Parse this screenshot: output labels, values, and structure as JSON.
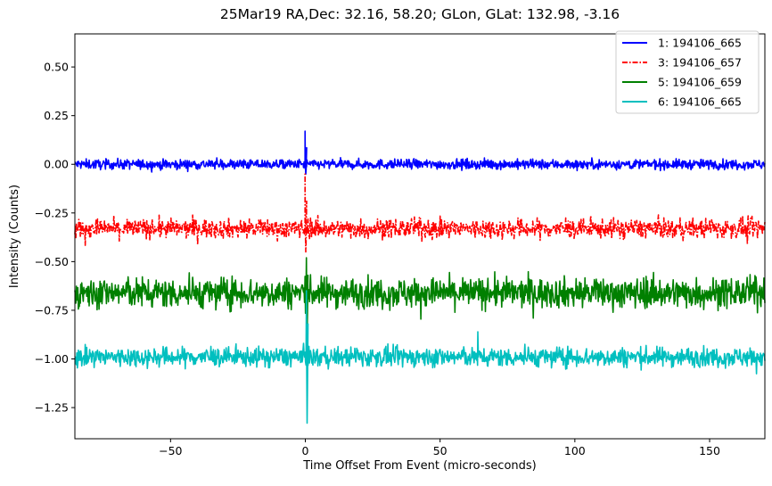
{
  "chart_data": {
    "type": "line",
    "title": "25Mar19 RA,Dec:   32.16,  58.20; GLon, GLat:  132.98,  -3.16",
    "xlabel": "Time Offset From Event (micro-seconds)",
    "ylabel": "Intensity (Counts)",
    "xlim": [
      -85.5,
      170.5
    ],
    "ylim": [
      -1.41,
      0.67
    ],
    "xticks": [
      -50,
      0,
      50,
      100,
      150
    ],
    "xtick_labels": [
      "−50",
      "0",
      "50",
      "100",
      "150"
    ],
    "yticks": [
      0.5,
      0.25,
      0.0,
      -0.25,
      -0.5,
      -0.75,
      -1.0,
      -1.25
    ],
    "ytick_labels": [
      "0.50",
      "0.25",
      "0.00",
      "−0.25",
      "−0.50",
      "−0.75",
      "−1.00",
      "−1.25"
    ],
    "legend_position": "top-right",
    "series": [
      {
        "name": "1: 194106_665",
        "color": "#0000ff",
        "linestyle": "solid",
        "baseline": 0.0,
        "noise_amplitude": 0.018,
        "spike": {
          "x": 0.0,
          "peak": 0.17,
          "trough": -0.05
        }
      },
      {
        "name": "3: 194106_657",
        "color": "#ff0000",
        "linestyle": "dashdot",
        "baseline": -0.33,
        "noise_amplitude": 0.035,
        "spike": {
          "x": 0.0,
          "peak": -0.05,
          "trough": -0.45
        },
        "dips": [
          {
            "x": 164.0,
            "y": -0.41
          }
        ]
      },
      {
        "name": "5: 194106_659",
        "color": "#008000",
        "linestyle": "solid",
        "baseline": -0.66,
        "noise_amplitude": 0.055,
        "spike": {
          "x": 0.5,
          "peak": -0.48,
          "trough": -0.88
        }
      },
      {
        "name": "6: 194106_665",
        "color": "#00bfbf",
        "linestyle": "solid",
        "baseline": -0.99,
        "noise_amplitude": 0.035,
        "spike": {
          "x": 0.5,
          "peak": -0.65,
          "trough": -1.33
        },
        "bumps": [
          {
            "x": 64.0,
            "y": -0.86
          }
        ]
      }
    ]
  }
}
